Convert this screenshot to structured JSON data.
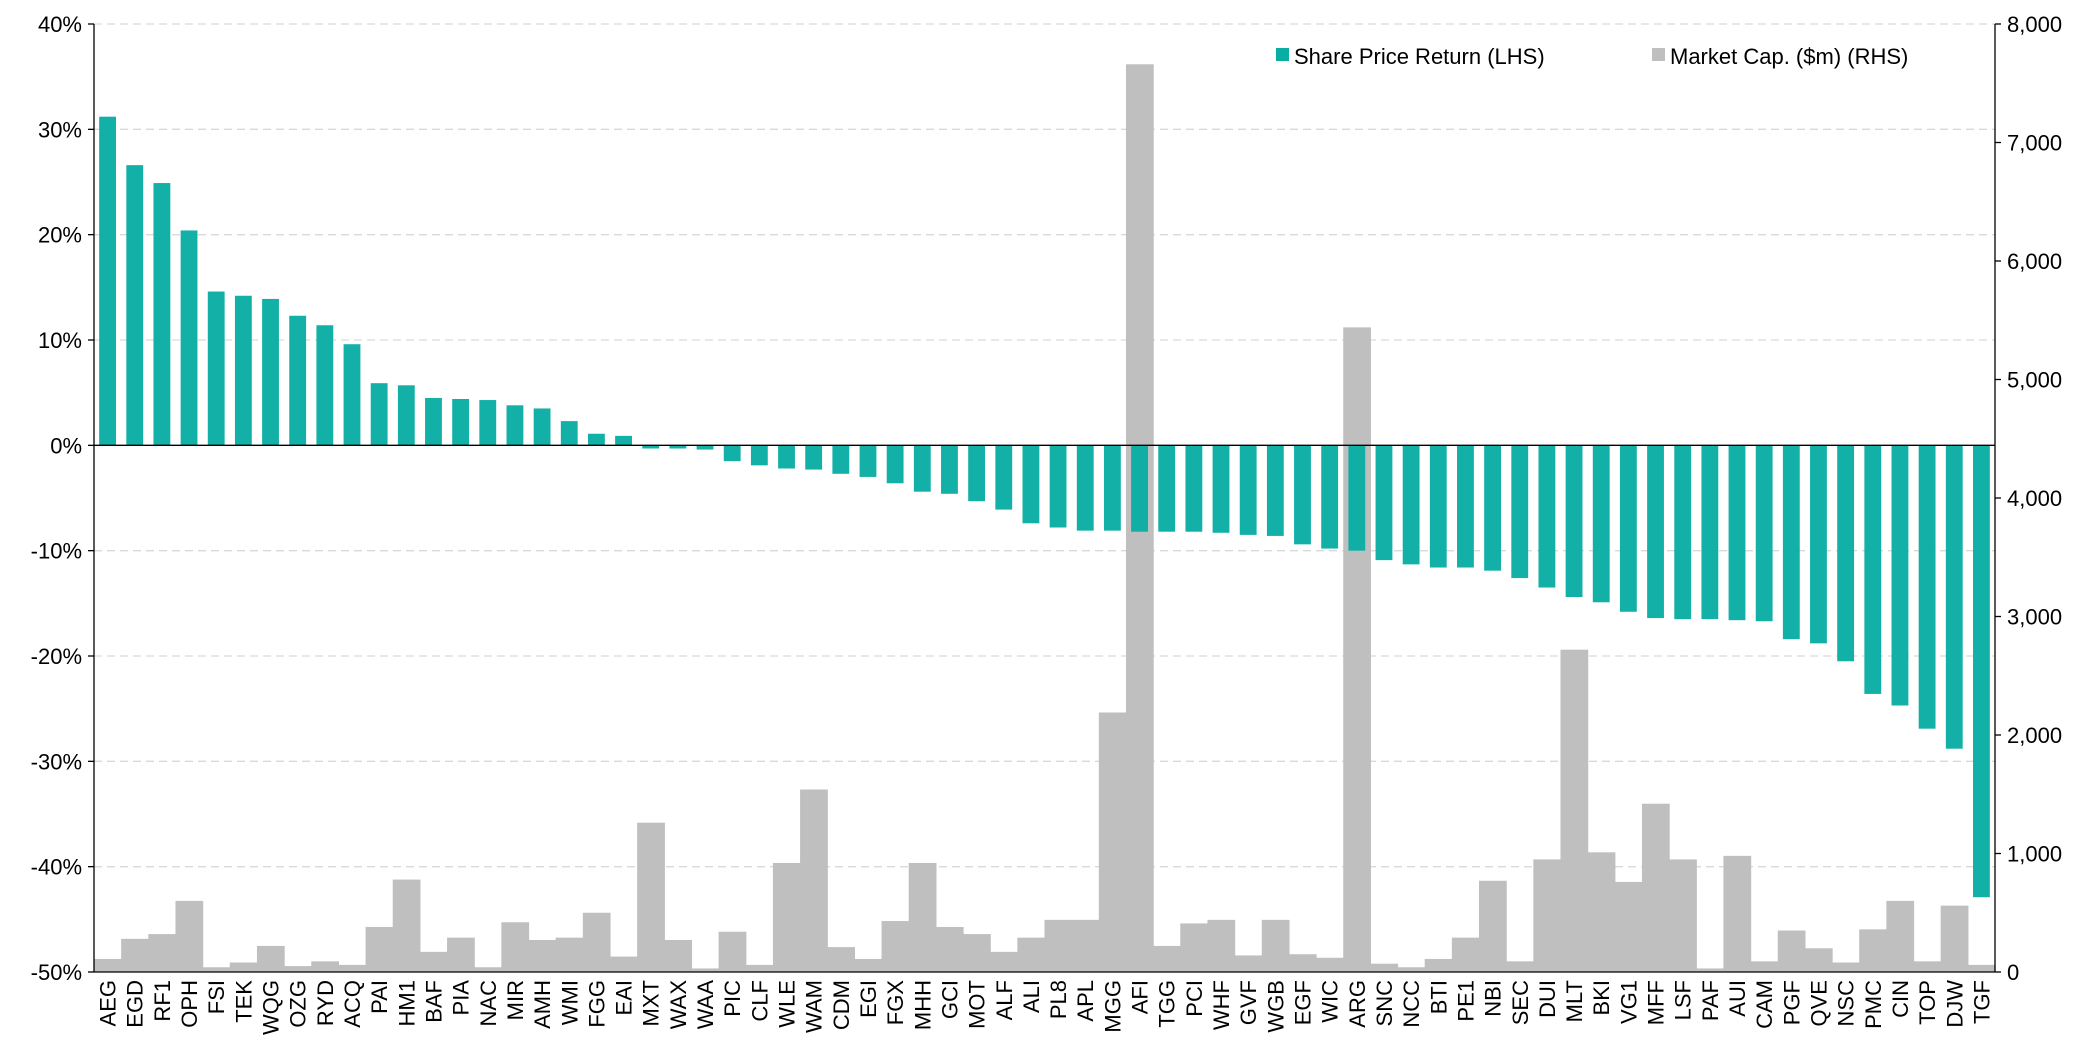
{
  "chart_data": {
    "type": "bar",
    "title": "",
    "xlabel": "",
    "categories": [
      "AEG",
      "EGD",
      "RF1",
      "OPH",
      "FSI",
      "TEK",
      "WQG",
      "OZG",
      "RYD",
      "ACQ",
      "PAI",
      "HM1",
      "BAF",
      "PIA",
      "NAC",
      "MIR",
      "AMH",
      "WMI",
      "FGG",
      "EAI",
      "MXT",
      "WAX",
      "WAA",
      "PIC",
      "CLF",
      "WLE",
      "WAM",
      "CDM",
      "EGI",
      "FGX",
      "MHH",
      "GCI",
      "MOT",
      "ALF",
      "ALI",
      "PL8",
      "APL",
      "MGG",
      "AFI",
      "TGG",
      "PCI",
      "WHF",
      "GVF",
      "WGB",
      "EGF",
      "WIC",
      "ARG",
      "SNC",
      "NCC",
      "BTI",
      "PE1",
      "NBI",
      "SEC",
      "DUI",
      "MLT",
      "BKI",
      "VG1",
      "MFF",
      "LSF",
      "PAF",
      "AUI",
      "CAM",
      "PGF",
      "QVE",
      "NSC",
      "PMC",
      "CIN",
      "TOP",
      "DJW",
      "TGF"
    ],
    "series": [
      {
        "name": "Share Price Return (LHS)",
        "axis": "left",
        "color": "#0aada4",
        "values": [
          31.2,
          26.6,
          24.9,
          20.4,
          14.6,
          14.2,
          13.9,
          12.3,
          11.4,
          9.6,
          5.9,
          5.7,
          4.5,
          4.4,
          4.3,
          3.8,
          3.5,
          2.3,
          1.1,
          0.9,
          -0.3,
          -0.3,
          -0.4,
          -1.5,
          -1.9,
          -2.2,
          -2.3,
          -2.7,
          -3.0,
          -3.6,
          -4.4,
          -4.6,
          -5.3,
          -6.1,
          -7.4,
          -7.8,
          -8.1,
          -8.1,
          -8.2,
          -8.2,
          -8.2,
          -8.3,
          -8.5,
          -8.6,
          -9.4,
          -9.8,
          -10.0,
          -10.9,
          -11.3,
          -11.6,
          -11.6,
          -11.9,
          -12.6,
          -13.5,
          -14.4,
          -14.9,
          -15.8,
          -16.4,
          -16.5,
          -16.5,
          -16.6,
          -16.7,
          -18.4,
          -18.8,
          -20.5,
          -23.6,
          -24.7,
          -26.9,
          -28.8,
          -42.9
        ]
      },
      {
        "name": "Market Cap. ($m) (RHS)",
        "axis": "right",
        "color": "#bfbfbf",
        "values": [
          110,
          280,
          320,
          600,
          40,
          80,
          220,
          50,
          90,
          60,
          380,
          780,
          170,
          290,
          40,
          420,
          270,
          290,
          500,
          130,
          1260,
          270,
          30,
          340,
          60,
          920,
          1540,
          210,
          110,
          430,
          920,
          380,
          320,
          170,
          290,
          440,
          440,
          2190,
          7660,
          220,
          410,
          440,
          140,
          440,
          150,
          120,
          5440,
          70,
          40,
          110,
          290,
          770,
          90,
          950,
          2720,
          1010,
          760,
          1420,
          950,
          30,
          980,
          90,
          350,
          200,
          80,
          360,
          600,
          90,
          560,
          60
        ]
      }
    ],
    "y_left": {
      "min": -50,
      "max": 40,
      "step": 10,
      "unit": "%",
      "ticks": [
        "40%",
        "30%",
        "20%",
        "10%",
        "0%",
        "-10%",
        "-20%",
        "-30%",
        "-40%",
        "-50%"
      ]
    },
    "y_right": {
      "min": 0,
      "max": 8000,
      "step": 1000,
      "ticks": [
        "8,000",
        "7,000",
        "6,000",
        "5,000",
        "4,000",
        "3,000",
        "2,000",
        "1,000",
        "0"
      ]
    },
    "grid": "horizontal dashed",
    "legend_position": "top-right"
  }
}
